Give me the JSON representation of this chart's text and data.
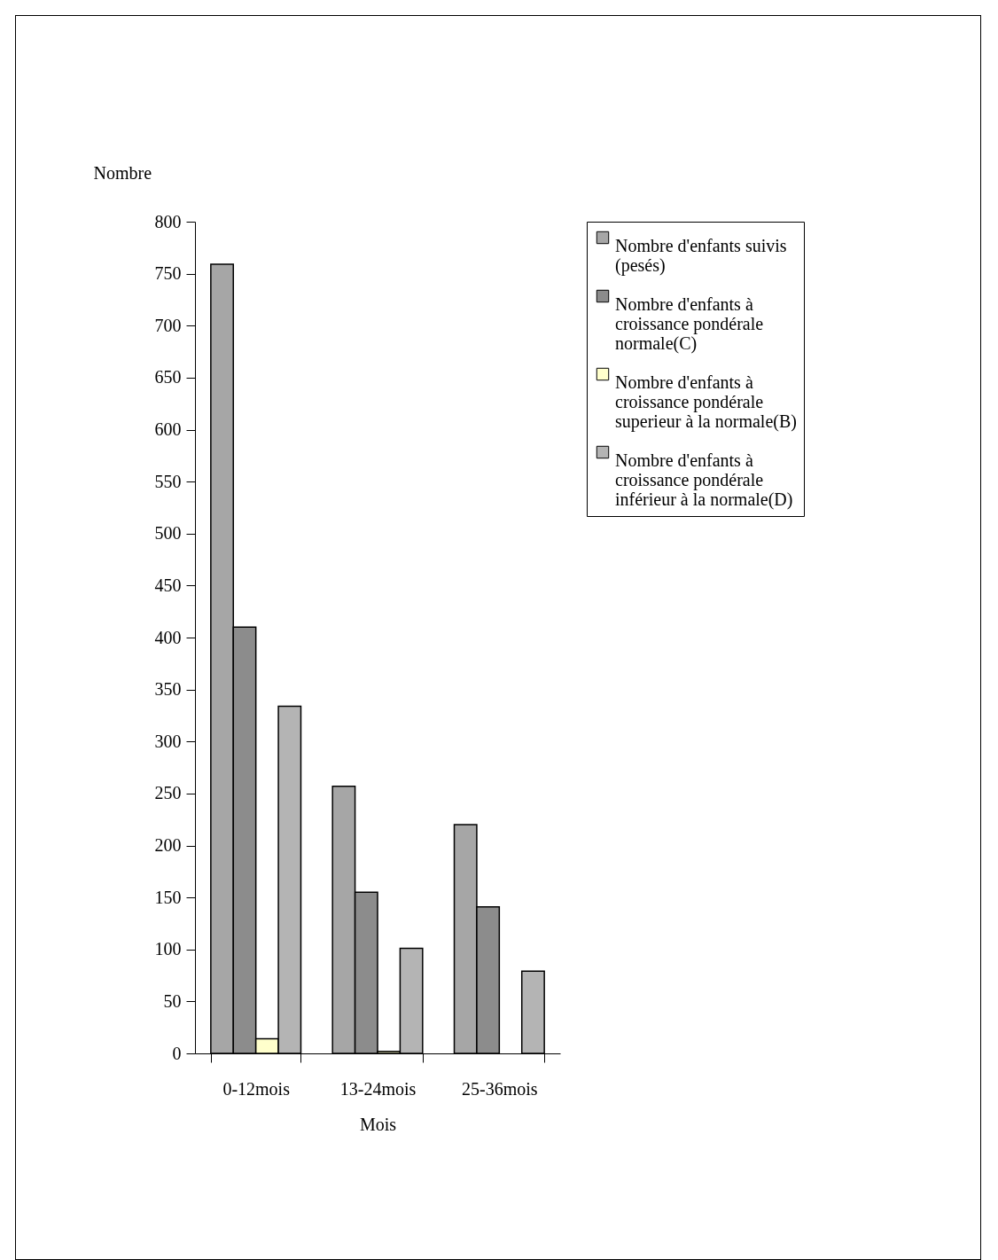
{
  "chart_data": {
    "type": "bar",
    "xlabel": "Mois",
    "ylabel": "Nombre",
    "categories": [
      "0-12mois",
      "13-24mois",
      "25-36mois"
    ],
    "series": [
      {
        "name": "Nombre d'enfants suivis (pesés)",
        "color": "#a6a6a6",
        "values": [
          759,
          257,
          220
        ]
      },
      {
        "name": "Nombre d'enfants à croissance pondérale normale(C)",
        "color": "#8c8c8c",
        "values": [
          410,
          155,
          141
        ]
      },
      {
        "name": "Nombre d'enfants à croissance pondérale superieur à la normale(B)",
        "color": "#ffffcc",
        "values": [
          14,
          2,
          null
        ]
      },
      {
        "name": "Nombre d'enfants à croissance pondérale inférieur à la normale(D)",
        "color": "#b4b4b4",
        "values": [
          334,
          101,
          79
        ]
      }
    ],
    "ylim": [
      0,
      800
    ],
    "yticks": [
      0,
      50,
      100,
      150,
      200,
      250,
      300,
      350,
      400,
      450,
      500,
      550,
      600,
      650,
      700,
      750,
      800
    ],
    "grid": false,
    "legend": "top right"
  }
}
